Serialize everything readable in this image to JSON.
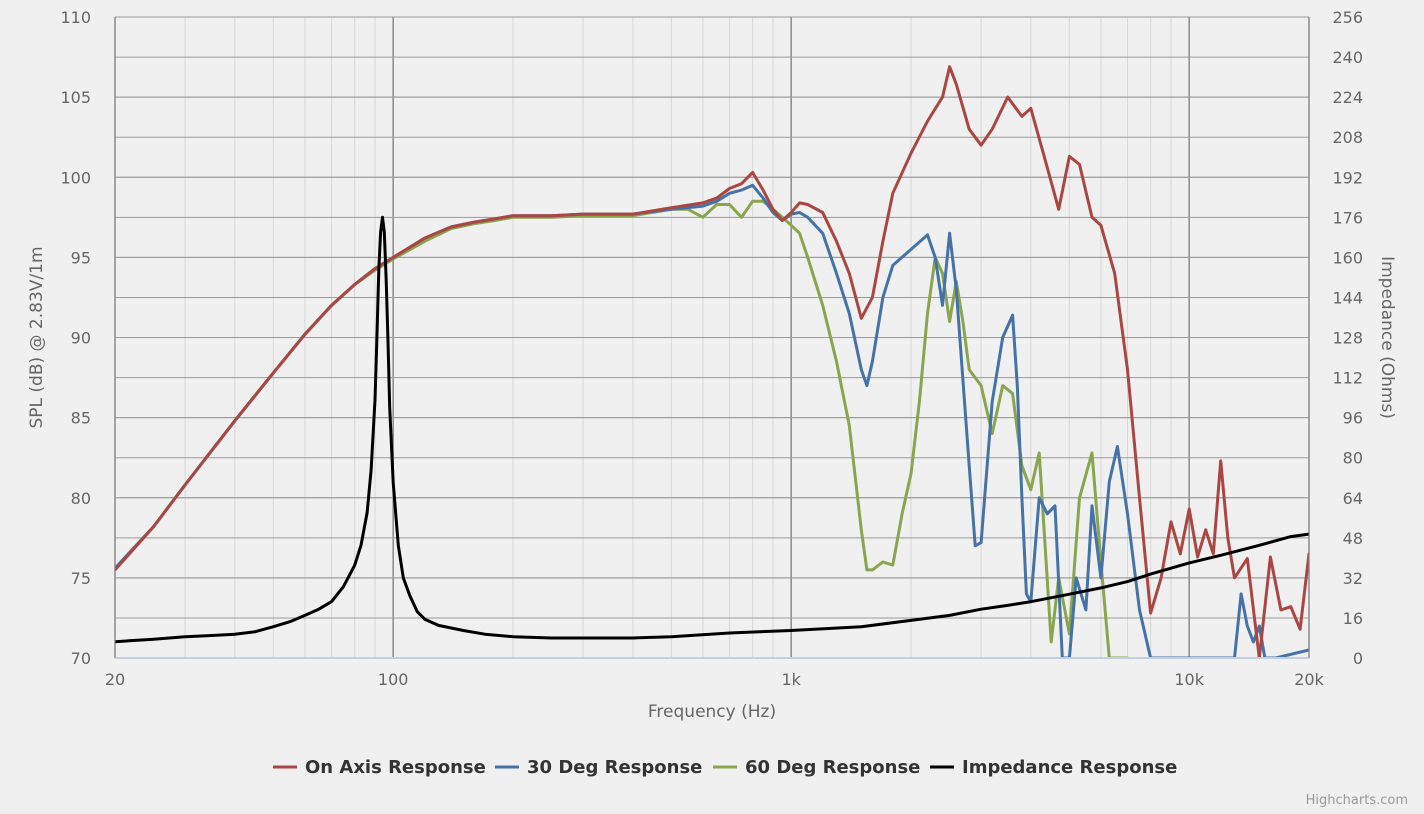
{
  "chart_data": {
    "type": "line",
    "xlabel": "Frequency (Hz)",
    "ylabel": "SPL (dB) @ 2.83V/1m",
    "ylabel_right": "Impedance (Ohms)",
    "x_scale": "log",
    "xlim": [
      20,
      20000
    ],
    "ylim": [
      70,
      110
    ],
    "ylim_right": [
      0,
      256
    ],
    "x_ticks": [
      "20",
      "100",
      "1k",
      "10k",
      "20k"
    ],
    "x_tick_values": [
      20,
      100,
      1000,
      10000,
      20000
    ],
    "y_ticks": [
      "70",
      "75",
      "80",
      "85",
      "90",
      "95",
      "100",
      "105",
      "110"
    ],
    "y_right_ticks": [
      "0",
      "16",
      "32",
      "48",
      "64",
      "80",
      "96",
      "112",
      "128",
      "144",
      "160",
      "176",
      "192",
      "208",
      "224",
      "240",
      "256"
    ],
    "grid": true,
    "legend_position": "bottom",
    "credits": "Highcharts.com",
    "series": [
      {
        "name": "On Axis Response",
        "color": "#aa4643",
        "axis": "left",
        "x": [
          20,
          25,
          30,
          40,
          50,
          60,
          70,
          80,
          90,
          100,
          120,
          140,
          160,
          180,
          200,
          250,
          300,
          400,
          500,
          600,
          650,
          700,
          750,
          800,
          850,
          900,
          950,
          1000,
          1050,
          1100,
          1200,
          1300,
          1400,
          1500,
          1600,
          1700,
          1800,
          2000,
          2200,
          2400,
          2500,
          2600,
          2800,
          3000,
          3200,
          3500,
          3800,
          4000,
          4300,
          4700,
          5000,
          5300,
          5700,
          6000,
          6500,
          7000,
          7500,
          8000,
          8500,
          9000,
          9500,
          10000,
          10500,
          11000,
          11500,
          12000,
          12500,
          13000,
          14000,
          15000,
          16000,
          17000,
          18000,
          19000,
          20000
        ],
        "y": [
          75.5,
          78.2,
          80.8,
          84.8,
          87.8,
          90.2,
          92.0,
          93.3,
          94.3,
          95.0,
          96.2,
          96.9,
          97.2,
          97.4,
          97.6,
          97.6,
          97.7,
          97.7,
          98.1,
          98.4,
          98.7,
          99.3,
          99.6,
          100.3,
          99.2,
          98.0,
          97.3,
          97.8,
          98.4,
          98.3,
          97.8,
          96.0,
          94.0,
          91.2,
          92.5,
          96.0,
          99.0,
          101.5,
          103.5,
          105.0,
          106.9,
          105.8,
          103.0,
          102.0,
          103.0,
          105.0,
          103.8,
          104.3,
          101.5,
          98.0,
          101.3,
          100.8,
          97.5,
          97.0,
          94.0,
          88.0,
          80.0,
          72.8,
          75.0,
          78.5,
          76.5,
          79.3,
          76.3,
          78.0,
          76.5,
          82.3,
          77.5,
          75.0,
          76.2,
          70.0,
          76.3,
          73.0,
          73.2,
          71.8,
          76.5
        ]
      },
      {
        "name": "30 Deg Response",
        "color": "#4572a7",
        "axis": "left",
        "x": [
          20,
          25,
          30,
          40,
          50,
          60,
          70,
          80,
          90,
          100,
          120,
          140,
          160,
          180,
          200,
          250,
          300,
          400,
          500,
          600,
          650,
          700,
          750,
          800,
          850,
          900,
          950,
          1000,
          1050,
          1100,
          1200,
          1300,
          1400,
          1500,
          1550,
          1600,
          1700,
          1800,
          2000,
          2200,
          2300,
          2400,
          2500,
          2600,
          2800,
          2900,
          3000,
          3200,
          3400,
          3600,
          3700,
          3800,
          3900,
          4000,
          4200,
          4400,
          4600,
          4800,
          5000,
          5200,
          5500,
          5700,
          6000,
          6300,
          6600,
          7000,
          7500,
          8000,
          13000,
          13500,
          14000,
          14500,
          15000,
          15500,
          16000,
          16500,
          20000
        ],
        "y": [
          75.6,
          78.2,
          80.8,
          84.8,
          87.8,
          90.2,
          92.0,
          93.3,
          94.3,
          95.0,
          96.2,
          96.9,
          97.2,
          97.4,
          97.6,
          97.6,
          97.7,
          97.7,
          98.0,
          98.2,
          98.5,
          99.0,
          99.2,
          99.5,
          98.7,
          97.8,
          97.3,
          97.7,
          97.8,
          97.5,
          96.5,
          94.0,
          91.5,
          88.0,
          87.0,
          88.5,
          92.5,
          94.5,
          95.5,
          96.4,
          95.0,
          92.0,
          96.5,
          93.0,
          82.0,
          77.0,
          77.2,
          86.0,
          90.0,
          91.4,
          87.0,
          80.0,
          74.0,
          73.5,
          80.0,
          79.0,
          79.5,
          70.0,
          70.0,
          75.0,
          73.0,
          79.5,
          75.0,
          81.0,
          83.2,
          79.0,
          73.0,
          70.0,
          70.0,
          74.0,
          72.0,
          71.0,
          72.0,
          70.0,
          70.0,
          70.0,
          70.5
        ]
      },
      {
        "name": "60 Deg Response",
        "color": "#89a54e",
        "axis": "left",
        "x": [
          20,
          25,
          30,
          40,
          50,
          60,
          70,
          80,
          90,
          100,
          120,
          140,
          160,
          180,
          200,
          250,
          300,
          400,
          500,
          550,
          600,
          650,
          700,
          750,
          800,
          850,
          900,
          950,
          1000,
          1050,
          1100,
          1200,
          1300,
          1400,
          1500,
          1550,
          1600,
          1700,
          1800,
          1900,
          2000,
          2100,
          2200,
          2300,
          2400,
          2500,
          2600,
          2700,
          2800,
          3000,
          3200,
          3400,
          3600,
          3800,
          4000,
          4200,
          4500,
          4700,
          5000,
          5300,
          5700,
          6000,
          6300,
          6600,
          6800,
          7000
        ],
        "y": [
          75.6,
          78.2,
          80.8,
          84.8,
          87.8,
          90.2,
          92.0,
          93.3,
          94.2,
          94.9,
          96.0,
          96.8,
          97.1,
          97.3,
          97.5,
          97.5,
          97.6,
          97.6,
          98.0,
          98.0,
          97.5,
          98.3,
          98.3,
          97.5,
          98.5,
          98.5,
          98.0,
          97.5,
          97.0,
          96.5,
          95.0,
          92.0,
          88.5,
          84.5,
          78.0,
          75.5,
          75.5,
          76.0,
          75.8,
          79.0,
          81.5,
          86.0,
          91.5,
          95.0,
          94.0,
          91.0,
          93.5,
          91.0,
          88.0,
          87.0,
          84.0,
          87.0,
          86.5,
          82.0,
          80.5,
          82.8,
          71.0,
          75.0,
          71.5,
          80.0,
          82.8,
          76.0,
          70.0,
          70.0,
          70.0,
          70.0
        ]
      },
      {
        "name": "Impedance Response",
        "color": "#000000",
        "axis": "right",
        "x": [
          20,
          25,
          30,
          35,
          40,
          45,
          50,
          55,
          60,
          65,
          70,
          75,
          80,
          83,
          86,
          88,
          90,
          91,
          92,
          93,
          94,
          95,
          96,
          97,
          98,
          100,
          103,
          106,
          110,
          115,
          120,
          130,
          140,
          150,
          170,
          200,
          250,
          300,
          400,
          500,
          700,
          1000,
          1500,
          2000,
          2500,
          3000,
          3500,
          4000,
          5000,
          6000,
          7000,
          8000,
          10000,
          12000,
          15000,
          18000,
          20000
        ],
        "y": [
          6.5,
          7.5,
          8.5,
          9.0,
          9.5,
          10.5,
          12.5,
          14.5,
          17.0,
          19.5,
          22.5,
          28.5,
          37.0,
          45.0,
          58.0,
          75.0,
          103.0,
          128.0,
          155.0,
          170.0,
          176.0,
          170.0,
          152.0,
          128.0,
          100.0,
          70.0,
          45.0,
          32.0,
          25.0,
          18.5,
          15.5,
          13.0,
          12.0,
          11.0,
          9.5,
          8.5,
          8.0,
          8.0,
          8.0,
          8.5,
          10.0,
          11.0,
          12.5,
          15.0,
          17.0,
          19.5,
          21.0,
          22.5,
          25.5,
          28.0,
          30.5,
          33.5,
          38.0,
          41.0,
          45.0,
          48.5,
          49.5
        ]
      }
    ]
  }
}
